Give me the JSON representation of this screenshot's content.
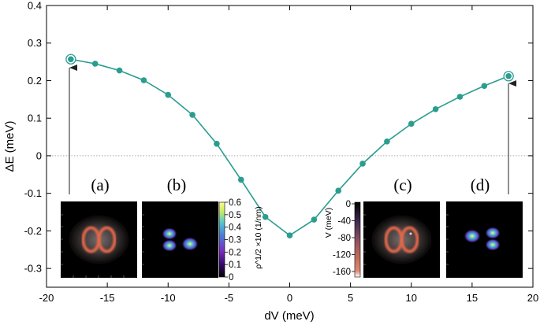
{
  "chart_data": {
    "type": "line",
    "xlabel": "dV (meV)",
    "ylabel": "ΔE (meV)",
    "xlim": [
      -20,
      20
    ],
    "ylim": [
      -0.35,
      0.4
    ],
    "xticks": [
      "-20",
      "-15",
      "-10",
      "-5",
      "0",
      "5",
      "10",
      "15",
      "20"
    ],
    "yticks": [
      "0.4",
      "0.3",
      "0.2",
      "0.1",
      "0",
      "-0.1",
      "-0.2",
      "-0.3"
    ],
    "zero_line": true,
    "series": [
      {
        "color": "#2a9d8f",
        "x": [
          -18,
          -16,
          -14,
          -12,
          -10,
          -8,
          -6,
          -4,
          -2,
          0,
          2,
          4,
          6,
          8,
          10,
          12,
          14,
          16,
          18
        ],
        "y": [
          0.257,
          0.245,
          0.227,
          0.201,
          0.162,
          0.109,
          0.032,
          -0.064,
          -0.163,
          -0.212,
          -0.17,
          -0.093,
          -0.021,
          0.038,
          0.085,
          0.124,
          0.157,
          0.186,
          0.212
        ]
      }
    ],
    "highlighted_points": [
      {
        "x": -18,
        "y": 0.257,
        "arrow_to_panel": "(a)"
      },
      {
        "x": 18,
        "y": 0.212,
        "arrow_to_panel": "(d)"
      }
    ],
    "insets": [
      {
        "label": "(a)",
        "kind": "potential map, double-ring"
      },
      {
        "label": "(b)",
        "kind": "density map, two-lobe"
      },
      {
        "label": "(c)",
        "kind": "potential map, double-ring"
      },
      {
        "label": "(d)",
        "kind": "density map, two-lobe"
      }
    ],
    "colorbars": [
      {
        "title": "ρ^1/2 ×10 (1/nm)",
        "ticks": [
          "0.6",
          "0.5",
          "0.4",
          "0.3",
          "0.2",
          "0.1",
          "0"
        ],
        "colors": [
          "#000000",
          "#3a0a73",
          "#7a2cc0",
          "#4b79d8",
          "#4fc4cf",
          "#c9ec62",
          "#fbfb8c"
        ]
      },
      {
        "title": "V (meV)",
        "ticks": [
          "0",
          "-40",
          "-80",
          "-120",
          "-160"
        ],
        "colors": [
          "#000000",
          "#3e2a50",
          "#8b4f60",
          "#c46e5e",
          "#de8b74",
          "#ffffff"
        ]
      }
    ]
  }
}
